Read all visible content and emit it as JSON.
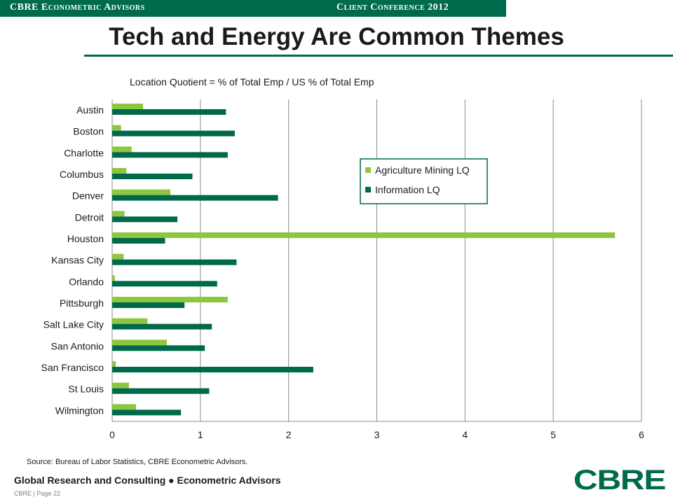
{
  "header": {
    "left_text": "CBRE Econometric Advisors",
    "right_text": "Client Conference 2012"
  },
  "page_title": "Tech and Energy Are Common Themes",
  "footer": {
    "source": "Source: Bureau  of Labor Statistics, CBRE Econometric Advisors.",
    "group": "Global Research and Consulting ● Econometric Advisors",
    "page": "CBRE  |  Page 22",
    "logo": "CBRE"
  },
  "colors": {
    "brand": "#006a4d",
    "agriculture": "#8dc63f",
    "information": "#00694b"
  },
  "chart_data": {
    "type": "bar",
    "orientation": "horizontal",
    "title": "Location Quotient = % of Total Emp / US % of Total Emp",
    "xlabel": "",
    "ylabel": "",
    "categories": [
      "Austin",
      "Boston",
      "Charlotte",
      "Columbus",
      "Denver",
      "Detroit",
      "Houston",
      "Kansas City",
      "Orlando",
      "Pittsburgh",
      "Salt Lake City",
      "San Antonio",
      "San Francisco",
      "St Louis",
      "Wilmington"
    ],
    "series": [
      {
        "name": "Agriculture Mining LQ",
        "color": "#8dc63f",
        "values": [
          0.35,
          0.1,
          0.22,
          0.16,
          0.66,
          0.14,
          5.7,
          0.13,
          0.03,
          1.31,
          0.4,
          0.62,
          0.04,
          0.19,
          0.27
        ]
      },
      {
        "name": "Information LQ",
        "color": "#00694b",
        "values": [
          1.29,
          1.39,
          1.31,
          0.91,
          1.88,
          0.74,
          0.6,
          1.41,
          1.19,
          0.82,
          1.13,
          1.05,
          2.28,
          1.1,
          0.78
        ]
      }
    ],
    "xlim": [
      0,
      6
    ],
    "xticks": [
      "0",
      "1",
      "2",
      "3",
      "4",
      "5",
      "6"
    ],
    "grid": "vertical",
    "legend_position": "upper-right inside plot"
  }
}
